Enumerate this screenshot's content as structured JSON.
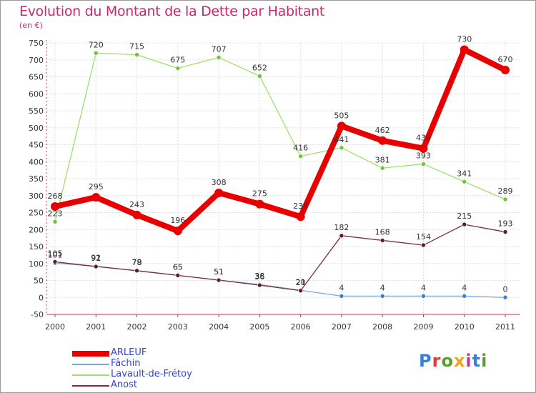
{
  "header": {
    "title": "Evolution du Montant de la Dette par Habitant",
    "subtitle": "(en €)"
  },
  "colors": {
    "title": "#c62a6a",
    "grid": "#dddddd",
    "axis": "#c0305a",
    "legend_text": "#3344cc"
  },
  "logo": {
    "text": "Proxiti",
    "letter_colors": [
      "#3a7fd5",
      "#e03c31",
      "#5a9e2a",
      "#f2a21b",
      "#c4399b",
      "#3a7fd5",
      "#5a9e2a"
    ]
  },
  "chart_data": {
    "type": "line",
    "title": "Evolution du Montant de la Dette par Habitant",
    "subtitle": "(en €)",
    "xlabel": "",
    "ylabel": "",
    "x": [
      "2000",
      "2001",
      "2002",
      "2003",
      "2004",
      "2005",
      "2006",
      "2007",
      "2008",
      "2009",
      "2010",
      "2011"
    ],
    "ylim": [
      -50,
      750
    ],
    "yticks": [
      "-50",
      "0",
      "50",
      "100",
      "150",
      "200",
      "250",
      "300",
      "350",
      "400",
      "450",
      "500",
      "550",
      "600",
      "650",
      "700",
      "750"
    ],
    "grid": true,
    "legend": "bottom-left",
    "series": [
      {
        "name": "ARLEUF",
        "color": "#e80000",
        "point_color": "#e80000",
        "width": 8,
        "radius": 6,
        "values": [
          268,
          295,
          243,
          196,
          308,
          275,
          238,
          505,
          462,
          439,
          730,
          670
        ],
        "labels": [
          "268",
          "295",
          "243",
          "196",
          "308",
          "275",
          "238",
          "505",
          "462",
          "439",
          "730",
          "670"
        ]
      },
      {
        "name": "Fâchin",
        "color": "#7ba7d9",
        "point_color": "#3d7fc8",
        "width": 1.3,
        "radius": 3,
        "values": [
          101,
          92,
          78,
          65,
          51,
          38,
          21,
          4,
          4,
          4,
          4,
          0
        ],
        "labels": [
          "101",
          "92",
          "78",
          "65",
          "51",
          "38",
          "21",
          "4",
          "4",
          "4",
          "4",
          "0"
        ]
      },
      {
        "name": "Lavault-de-Frétoy",
        "color": "#9ee06f",
        "point_color": "#6cc43e",
        "width": 1.3,
        "radius": 3,
        "values": [
          223,
          720,
          715,
          675,
          707,
          652,
          416,
          441,
          381,
          393,
          341,
          289
        ],
        "labels": [
          "223",
          "720",
          "715",
          "675",
          "707",
          "652",
          "416",
          "441",
          "381",
          "393",
          "341",
          "289"
        ]
      },
      {
        "name": "Anost",
        "color": "#7a2d3d",
        "point_color": "#5a1f2b",
        "width": 1.3,
        "radius": 3,
        "values": [
          105,
          91,
          79,
          65,
          51,
          36,
          20,
          182,
          168,
          154,
          215,
          193
        ],
        "labels": [
          "105",
          "91",
          "79",
          "65",
          "51",
          "36",
          "20",
          "182",
          "168",
          "154",
          "215",
          "193"
        ]
      }
    ]
  }
}
